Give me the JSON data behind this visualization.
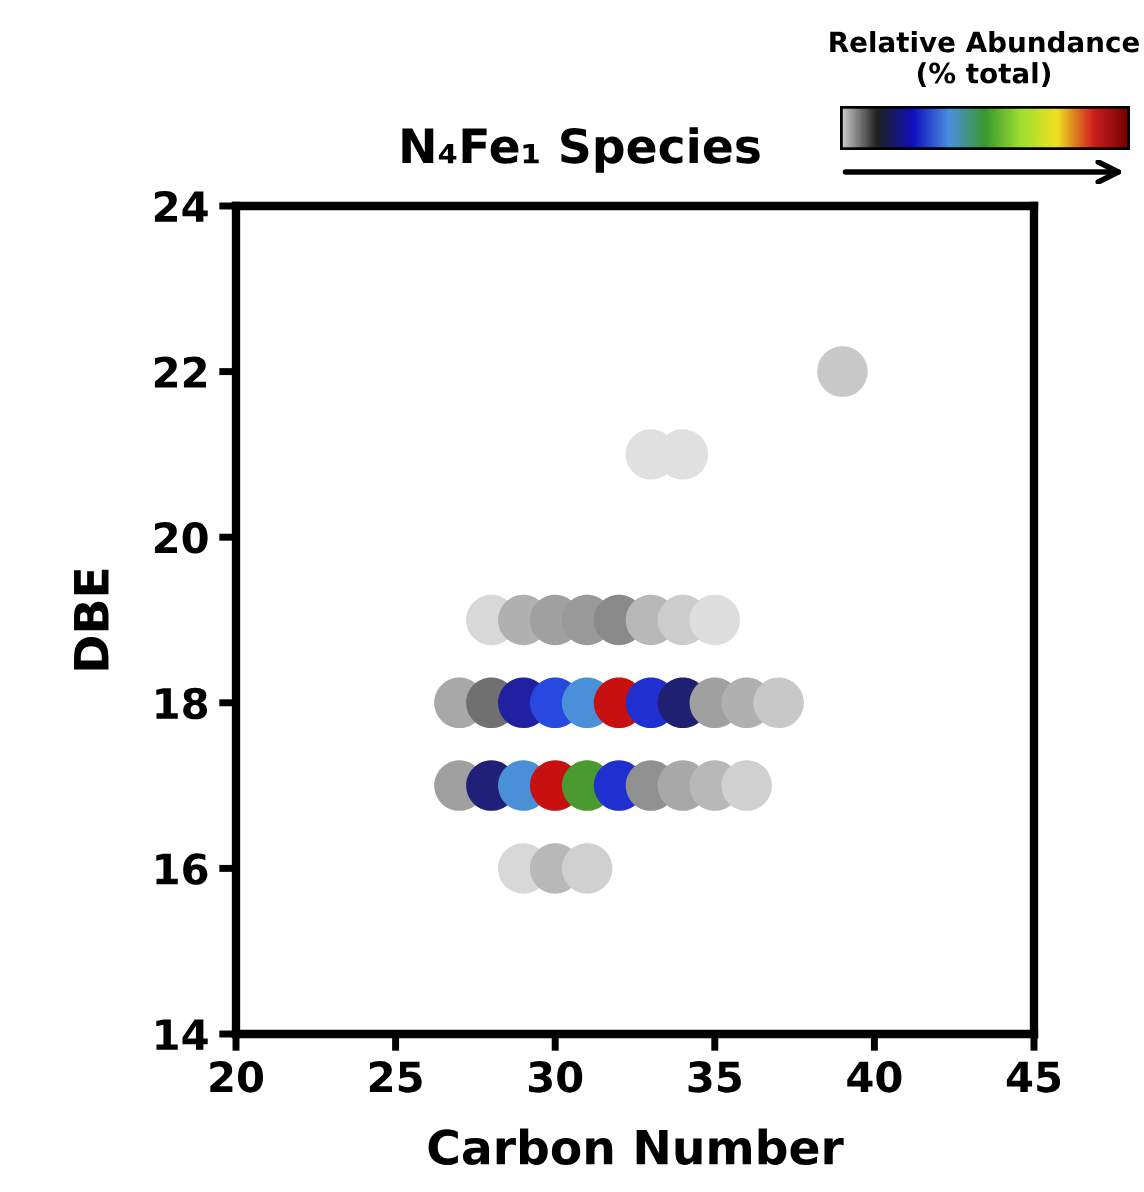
{
  "chart_data": {
    "type": "scatter",
    "title": "N₄Fe₁ Species",
    "xlabel": "Carbon Number",
    "ylabel": "DBE",
    "annotations": [
      "Relative Abundance\n(% total)"
    ],
    "xlim": [
      20,
      45
    ],
    "ylim": [
      14,
      24
    ],
    "xticks": [
      20,
      25,
      30,
      35,
      40,
      45
    ],
    "yticks": [
      14,
      16,
      18,
      20,
      22,
      24
    ],
    "grid": false,
    "marker": "circle",
    "series": [
      {
        "x": [
          28,
          29,
          30,
          31,
          32,
          33,
          34,
          35
        ],
        "values": [
          19,
          19,
          19,
          19,
          19,
          19,
          19,
          19
        ],
        "colors": [
          "#d8d8d8",
          "#b0b0b0",
          "#a0a0a0",
          "#999999",
          "#8a8a8a",
          "#b8b8b8",
          "#cccccc",
          "#dddddd"
        ]
      },
      {
        "x": [
          27,
          28,
          29,
          30,
          31,
          32,
          33,
          34,
          35,
          36,
          37
        ],
        "values": [
          18,
          18,
          18,
          18,
          18,
          18,
          18,
          18,
          18,
          18,
          18
        ],
        "colors": [
          "#a8a8a8",
          "#707070",
          "#2020a0",
          "#2848e0",
          "#4a90d8",
          "#c81010",
          "#2030d0",
          "#202070",
          "#a0a0a0",
          "#b0b0b0",
          "#c8c8c8"
        ]
      },
      {
        "x": [
          27,
          28,
          29,
          30,
          31,
          32,
          33,
          34,
          35,
          36
        ],
        "values": [
          17,
          17,
          17,
          17,
          17,
          17,
          17,
          17,
          17,
          17
        ],
        "colors": [
          "#a0a0a0",
          "#202078",
          "#4a90d8",
          "#c81010",
          "#4a9a30",
          "#2030d0",
          "#909090",
          "#a8a8a8",
          "#b8b8b8",
          "#d0d0d0"
        ]
      },
      {
        "x": [
          29,
          30,
          31
        ],
        "values": [
          16,
          16,
          16
        ],
        "colors": [
          "#d8d8d8",
          "#b8b8b8",
          "#d0d0d0"
        ]
      },
      {
        "x": [
          33,
          34
        ],
        "values": [
          21,
          21
        ],
        "colors": [
          "#e0e0e0",
          "#e0e0e0"
        ]
      },
      {
        "x": [
          39
        ],
        "values": [
          22
        ],
        "colors": [
          "#c8c8c8"
        ]
      }
    ]
  }
}
